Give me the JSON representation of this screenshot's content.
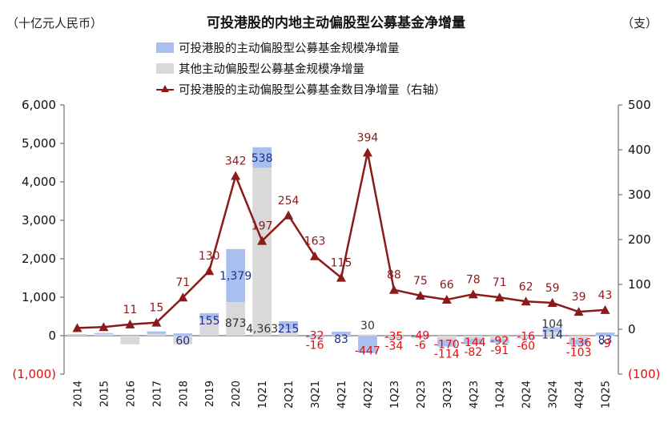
{
  "header": {
    "unit_left": "（十亿元人民币）",
    "unit_right": "（支）",
    "title": "可投港股的内地主动偏股型公募基金净增量"
  },
  "legend": [
    {
      "label": "可投港股的主动偏股型公募基金规模净增量",
      "kind": "bar",
      "color": "#a9bff0"
    },
    {
      "label": "其他主动偏股型公募基金规模净增量",
      "kind": "bar",
      "color": "#d9d9d9"
    },
    {
      "label": "可投港股的主动偏股型公募基金数目净增量（右轴）",
      "kind": "line",
      "color": "#8b1a1a"
    }
  ],
  "chart_data": {
    "type": "bar",
    "title": "可投港股的内地主动偏股型公募基金净增量",
    "categories": [
      "2014",
      "2015",
      "2016",
      "2017",
      "2018",
      "2019",
      "2020",
      "1Q21",
      "2Q21",
      "3Q21",
      "4Q21",
      "4Q22",
      "1Q23",
      "2Q23",
      "3Q23",
      "4Q23",
      "1Q24",
      "2Q24",
      "3Q24",
      "4Q24",
      "1Q25"
    ],
    "y_left": {
      "min": -1000,
      "max": 6000,
      "ticks": [
        "(1,000)",
        "0",
        "1,000",
        "2,000",
        "3,000",
        "4,000",
        "5,000",
        "6,000"
      ],
      "tick_values": [
        -1000,
        0,
        1000,
        2000,
        3000,
        4000,
        5000,
        6000
      ]
    },
    "y_right": {
      "min": -100,
      "max": 500,
      "ticks": [
        "(100)",
        "0",
        "100",
        "200",
        "300",
        "400",
        "500"
      ],
      "tick_values": [
        -100,
        0,
        100,
        200,
        300,
        400,
        500
      ]
    },
    "series": [
      {
        "name": "可投港股的主动偏股型公募基金规模净增量",
        "kind": "bar",
        "color": "#a9bff0",
        "values": [
          20,
          25,
          -10,
          60,
          60,
          155,
          1379,
          538,
          215,
          -32,
          83,
          -447,
          -35,
          -49,
          -170,
          -144,
          -92,
          -16,
          114,
          -136,
          83
        ],
        "labels": [
          "",
          "",
          "",
          "",
          "60",
          "155",
          "1,379",
          "538",
          "215",
          "-32",
          "83",
          "-447",
          "-35",
          "-49",
          "-170",
          "-144",
          "-92",
          "-16",
          "114",
          "-136",
          "83"
        ]
      },
      {
        "name": "其他主动偏股型公募基金规模净增量",
        "kind": "bar",
        "color": "#d9d9d9",
        "values": [
          15,
          45,
          -210,
          50,
          -220,
          430,
          873,
          4363,
          160,
          -16,
          20,
          30,
          -34,
          -6,
          -114,
          -82,
          -91,
          -60,
          104,
          -103,
          -9
        ],
        "labels": [
          "",
          "",
          "",
          "",
          "",
          "",
          "873",
          "4,363",
          "",
          "-16",
          "",
          "30",
          "-34",
          "-6",
          "-114",
          "-82",
          "-91",
          "-60",
          "104",
          "-103",
          "-9"
        ]
      },
      {
        "name": "可投港股的主动偏股型公募基金数目净增量（右轴）",
        "kind": "line",
        "axis": "right",
        "color": "#8b1a1a",
        "values": [
          3,
          5,
          11,
          15,
          71,
          130,
          342,
          197,
          254,
          163,
          115,
          394,
          88,
          75,
          66,
          78,
          71,
          62,
          59,
          39,
          43
        ],
        "labels": [
          "",
          "",
          "11",
          "15",
          "71",
          "130",
          "342",
          "197",
          "254",
          "163",
          "115",
          "394",
          "88",
          "75",
          "66",
          "78",
          "71",
          "62",
          "59",
          "39",
          "43"
        ]
      }
    ],
    "grid": false,
    "legend_position": "top"
  }
}
